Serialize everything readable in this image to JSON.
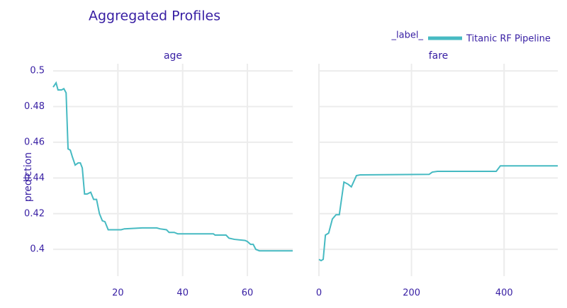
{
  "title": "Aggregated Profiles",
  "legend_title": "_label_",
  "chart_data": [
    {
      "type": "line",
      "title": "age",
      "y_label": "prediction",
      "x": [
        0,
        0.9,
        1.5,
        2.6,
        3.3,
        4,
        4.6,
        5.3,
        5.9,
        6.8,
        7.7,
        8.4,
        9,
        9.7,
        10.5,
        11.6,
        12.5,
        13.4,
        14.3,
        15.2,
        16,
        17,
        21,
        22,
        27.5,
        32,
        33,
        35,
        35.8,
        37.4,
        38.5,
        49.5,
        50,
        53.4,
        54.3,
        56,
        59.3,
        60,
        61,
        61.8,
        62.6,
        63.7,
        74
      ],
      "series": [
        {
          "name": "Titanic RF Pipeline",
          "color": "#46bac2",
          "values": [
            0.4909,
            0.4933,
            0.4893,
            0.4893,
            0.49,
            0.4877,
            0.4563,
            0.4556,
            0.452,
            0.4472,
            0.4484,
            0.4484,
            0.4456,
            0.431,
            0.431,
            0.432,
            0.428,
            0.428,
            0.42,
            0.416,
            0.4155,
            0.411,
            0.411,
            0.4115,
            0.412,
            0.412,
            0.4115,
            0.411,
            0.4095,
            0.4095,
            0.4087,
            0.4087,
            0.408,
            0.408,
            0.4063,
            0.4056,
            0.405,
            0.4044,
            0.4028,
            0.4028,
            0.4,
            0.3992,
            0.3992
          ]
        }
      ],
      "xlim": [
        0,
        74
      ],
      "xticks": [
        20,
        40,
        60
      ],
      "ylim": [
        0.385,
        0.504
      ],
      "yticks": [
        0.4,
        0.42,
        0.44,
        0.46,
        0.48,
        0.5
      ],
      "grid": true
    },
    {
      "type": "line",
      "title": "fare",
      "x": [
        0,
        4.6,
        9.2,
        14,
        21,
        29,
        37,
        44,
        54,
        63,
        70,
        81,
        89,
        238,
        245,
        256,
        383,
        392,
        516
      ],
      "series": [
        {
          "name": "Titanic RF Pipeline",
          "color": "#46bac2",
          "values": [
            0.3944,
            0.3937,
            0.3944,
            0.408,
            0.4091,
            0.417,
            0.4194,
            0.4194,
            0.4377,
            0.4365,
            0.435,
            0.4413,
            0.4417,
            0.442,
            0.4433,
            0.4437,
            0.4437,
            0.4468,
            0.4468
          ]
        }
      ],
      "xlim": [
        0,
        516
      ],
      "xticks": [
        0,
        200,
        400
      ],
      "ylim": [
        0.385,
        0.504
      ],
      "yticks": [
        0.4,
        0.42,
        0.44,
        0.46,
        0.48,
        0.5
      ],
      "grid": true
    }
  ]
}
